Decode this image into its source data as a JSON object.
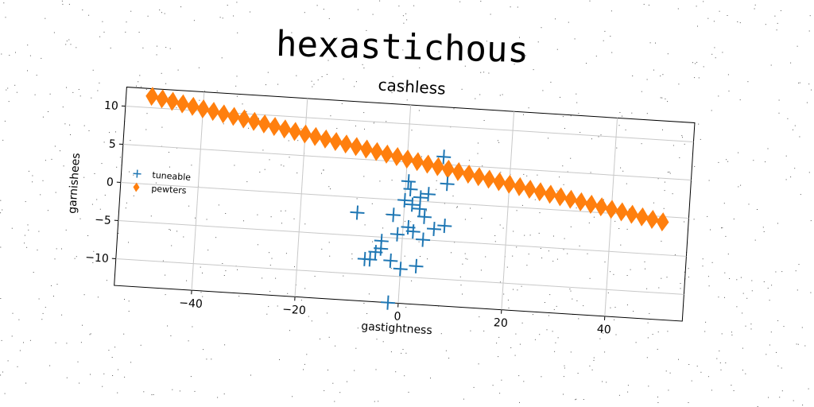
{
  "figure_title": "hexastichous",
  "chart_data": {
    "type": "scatter",
    "title": "cashless",
    "xlabel": "gastightness",
    "ylabel": "garnishees",
    "xlim": [
      -55,
      55
    ],
    "ylim": [
      -13.5,
      12.5
    ],
    "xticks": [
      -40,
      -20,
      0,
      20,
      40
    ],
    "xtick_labels": [
      "−40",
      "−20",
      "0",
      "20",
      "40"
    ],
    "yticks": [
      -10,
      -5,
      0,
      5,
      10
    ],
    "ytick_labels": [
      "−10",
      "−5",
      "0",
      "5",
      "10"
    ],
    "grid": true,
    "legend_position": "center-left",
    "series": [
      {
        "name": "tuneable",
        "marker": "plus",
        "color": "#1f77b4",
        "points": [
          [
            7,
            6
          ],
          [
            8,
            2.5
          ],
          [
            0.5,
            2.5
          ],
          [
            1,
            1.5
          ],
          [
            4.5,
            1
          ],
          [
            3,
            0.5
          ],
          [
            0,
            0
          ],
          [
            1.5,
            -0.5
          ],
          [
            3,
            -1
          ],
          [
            -9,
            -2
          ],
          [
            -2,
            -2
          ],
          [
            4,
            -2
          ],
          [
            8,
            -3
          ],
          [
            1,
            -3.5
          ],
          [
            6,
            -3.5
          ],
          [
            2,
            -4
          ],
          [
            -1,
            -4.5
          ],
          [
            4,
            -5
          ],
          [
            -4,
            -5.5
          ],
          [
            -4,
            -6.5
          ],
          [
            -5,
            -7
          ],
          [
            -6,
            -8
          ],
          [
            -7,
            -8
          ],
          [
            -2,
            -8
          ],
          [
            3,
            -8.5
          ],
          [
            0,
            -9
          ],
          [
            -2,
            -13.5
          ]
        ]
      },
      {
        "name": "pewters",
        "marker": "diamond",
        "color": "#ff7f0e",
        "line": {
          "x_start": -50,
          "x_end": 50,
          "count": 51,
          "y_start": 11.5,
          "y_end": -0.7
        }
      }
    ]
  }
}
